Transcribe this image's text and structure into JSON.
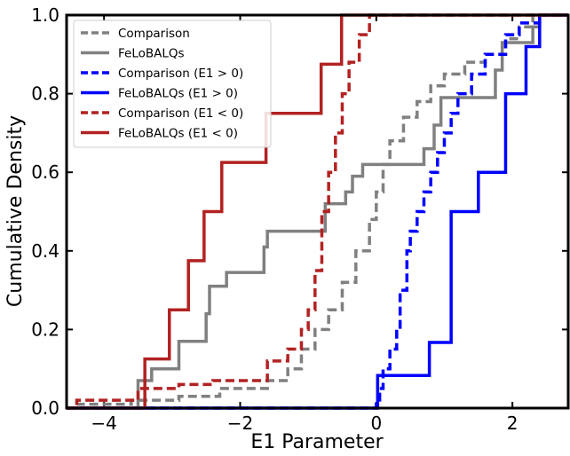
{
  "chart_data": {
    "type": "step",
    "x_label": "E1 Parameter",
    "y_label": "Cumulative Density",
    "xlim": [
      -4.55,
      2.82
    ],
    "ylim": [
      0,
      1
    ],
    "xticks": [
      {
        "value": -4,
        "label": "−4"
      },
      {
        "value": -2,
        "label": "−2"
      },
      0,
      2
    ],
    "yticks": [
      {
        "value": 0,
        "label": "0.0"
      },
      {
        "value": 0.2,
        "label": "0.2"
      },
      {
        "value": 0.4,
        "label": "0.4"
      },
      {
        "value": 0.6,
        "label": "0.6"
      },
      {
        "value": 0.8,
        "label": "0.8"
      },
      {
        "value": 1,
        "label": "1.0"
      }
    ],
    "legend_position": "upper left",
    "series": [
      {
        "name": "Comparison",
        "color": "#808080",
        "dash": true,
        "x": [
          -4.4,
          -3.6,
          -2.9,
          -2.3,
          -1.6,
          -1.3,
          -1.1,
          -0.9,
          -0.7,
          -0.5,
          -0.3,
          -0.1,
          0.0,
          0.1,
          0.2,
          0.4,
          0.6,
          0.8,
          1.0,
          1.3,
          1.6,
          1.9,
          2.1,
          2.3
        ],
        "values": [
          0.01,
          0.02,
          0.03,
          0.05,
          0.07,
          0.1,
          0.15,
          0.2,
          0.25,
          0.32,
          0.4,
          0.48,
          0.55,
          0.62,
          0.68,
          0.74,
          0.78,
          0.82,
          0.85,
          0.88,
          0.9,
          0.94,
          0.97,
          1.0
        ]
      },
      {
        "name": "FeLoBALQs",
        "color": "#808080",
        "dash": false,
        "x": [
          -3.5,
          -3.3,
          -2.9,
          -2.5,
          -2.45,
          -2.2,
          -1.65,
          -1.6,
          -0.75,
          -0.45,
          -0.35,
          -0.2,
          0.7,
          0.85,
          0.95,
          1.75,
          1.85,
          2.3,
          2.4
        ],
        "values": [
          0.07,
          0.1,
          0.17,
          0.24,
          0.31,
          0.345,
          0.41,
          0.45,
          0.52,
          0.55,
          0.59,
          0.62,
          0.66,
          0.72,
          0.79,
          0.86,
          0.93,
          0.97,
          1.0
        ]
      },
      {
        "name": "Comparison (E1 > 0)",
        "color": "#0000ff",
        "dash": true,
        "x": [
          0.0,
          0.05,
          0.1,
          0.2,
          0.3,
          0.35,
          0.45,
          0.5,
          0.6,
          0.7,
          0.8,
          0.9,
          1.0,
          1.1,
          1.2,
          1.4,
          1.6,
          1.9,
          2.1,
          2.4
        ],
        "values": [
          0.01,
          0.05,
          0.1,
          0.15,
          0.2,
          0.3,
          0.4,
          0.45,
          0.5,
          0.55,
          0.6,
          0.65,
          0.7,
          0.75,
          0.8,
          0.85,
          0.9,
          0.95,
          0.98,
          1.0
        ]
      },
      {
        "name": "FeLoBALQs (E1 > 0)",
        "color": "#0000ff",
        "dash": false,
        "x": [
          0.02,
          0.78,
          1.1,
          1.5,
          1.9,
          2.2,
          2.4
        ],
        "values": [
          0.083,
          0.167,
          0.5,
          0.6,
          0.8,
          0.92,
          1.0
        ]
      },
      {
        "name": "Comparison (E1 < 0)",
        "color": "#b22222",
        "dash": true,
        "x": [
          -4.4,
          -3.5,
          -2.9,
          -2.4,
          -1.6,
          -1.3,
          -1.1,
          -1.0,
          -0.9,
          -0.8,
          -0.7,
          -0.6,
          -0.5,
          -0.4,
          -0.25,
          -0.1
        ],
        "values": [
          0.02,
          0.05,
          0.06,
          0.07,
          0.12,
          0.15,
          0.2,
          0.25,
          0.35,
          0.5,
          0.6,
          0.7,
          0.8,
          0.88,
          0.95,
          1.0
        ]
      },
      {
        "name": "FeLoBALQs  (E1 < 0)",
        "color": "#b22222",
        "dash": false,
        "x": [
          -3.4,
          -3.04,
          -2.76,
          -2.53,
          -2.27,
          -1.62,
          -0.81,
          -0.51
        ],
        "values": [
          0.125,
          0.25,
          0.375,
          0.5,
          0.625,
          0.75,
          0.875,
          1.0
        ]
      }
    ]
  }
}
